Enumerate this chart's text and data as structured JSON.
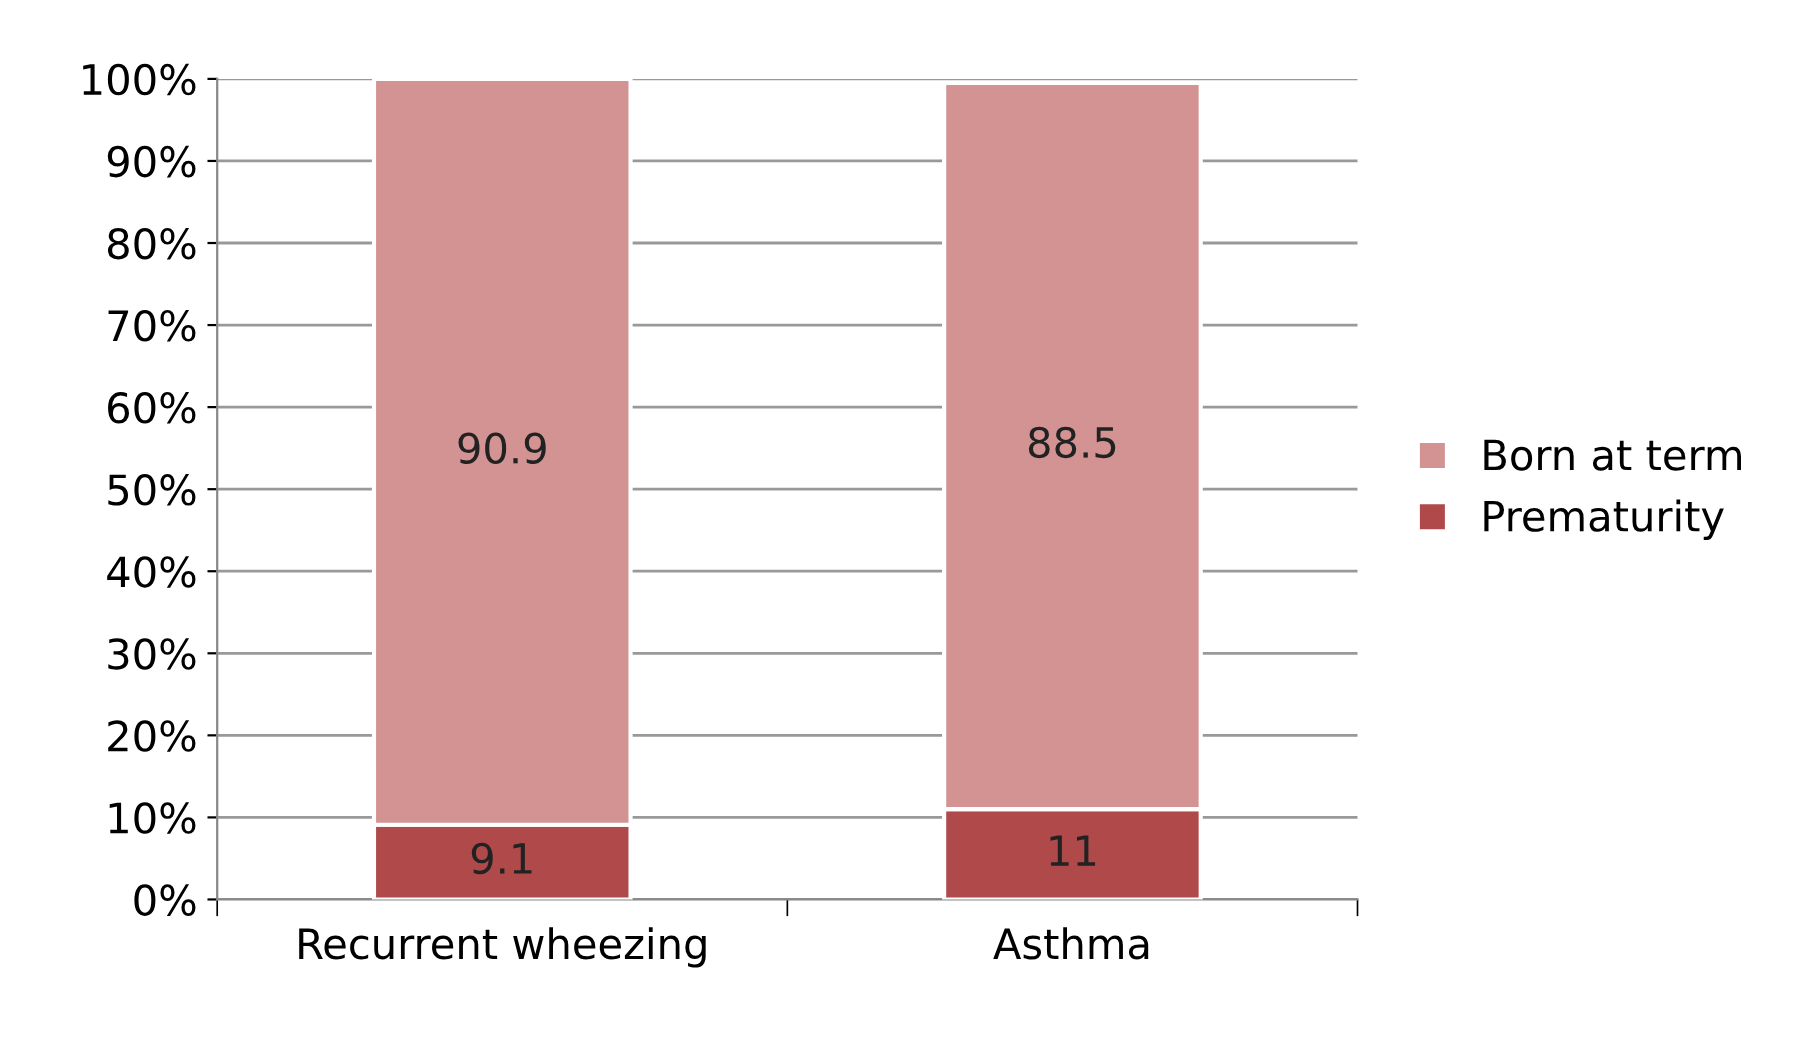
{
  "chart_data": {
    "type": "bar",
    "stacked": true,
    "categories": [
      "Recurrent wheezing",
      "Asthma"
    ],
    "series": [
      {
        "name": "Prematurity",
        "color": "#b04a4a",
        "values": [
          9.1,
          11
        ]
      },
      {
        "name": "Born at term",
        "color": "#d39393",
        "values": [
          90.9,
          88.5
        ]
      }
    ],
    "ylim": [
      0,
      100
    ],
    "yticks": [
      {
        "value": 0,
        "label": "0%"
      },
      {
        "value": 10,
        "label": "10%"
      },
      {
        "value": 20,
        "label": "20%"
      },
      {
        "value": 30,
        "label": "30%"
      },
      {
        "value": 40,
        "label": "40%"
      },
      {
        "value": 50,
        "label": "50%"
      },
      {
        "value": 60,
        "label": "60%"
      },
      {
        "value": 70,
        "label": "70%"
      },
      {
        "value": 80,
        "label": "80%"
      },
      {
        "value": 90,
        "label": "90%"
      },
      {
        "value": 100,
        "label": "100%"
      }
    ],
    "grid": "y",
    "legend": "right",
    "data_labels": true
  }
}
